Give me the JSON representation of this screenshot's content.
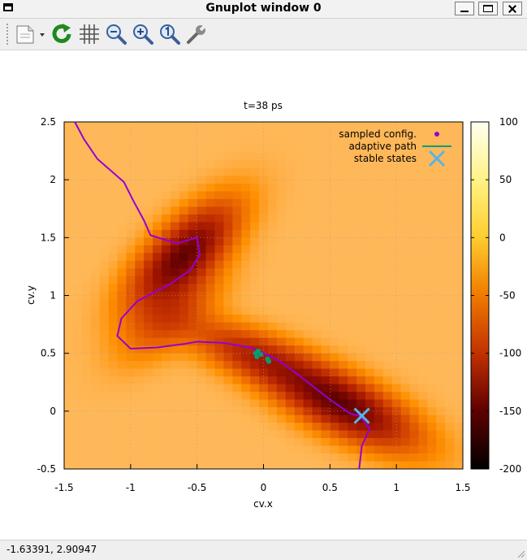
{
  "window": {
    "title": "Gnuplot window 0"
  },
  "toolbar": {
    "buttons": [
      {
        "name": "export-icon",
        "label": "Export"
      },
      {
        "name": "replot-icon",
        "label": "Replot"
      },
      {
        "name": "grid-icon",
        "label": "Grid"
      },
      {
        "name": "zoom-prev-icon",
        "label": "Previous zoom"
      },
      {
        "name": "zoom-next-icon",
        "label": "Next zoom"
      },
      {
        "name": "zoom-reset-icon",
        "label": "Autoscale"
      },
      {
        "name": "config-icon",
        "label": "Configure"
      }
    ]
  },
  "status": {
    "coords": "-1.63391,  2.90947"
  },
  "chart_data": {
    "type": "heatmap",
    "title": "t=38 ps",
    "xlabel": "cv.x",
    "ylabel": "cv.y",
    "xlim": [
      -1.5,
      1.5
    ],
    "ylim": [
      -0.5,
      2.5
    ],
    "xticks": [
      "-1.5",
      "-1",
      "-0.5",
      "0",
      "0.5",
      "1",
      "1.5"
    ],
    "yticks": [
      "-0.5",
      "0",
      "0.5",
      "1",
      "1.5",
      "2",
      "2.5"
    ],
    "grid": true,
    "colorbar": {
      "min": -200,
      "max": 100,
      "ticks": [
        "100",
        "50",
        "0",
        "-50",
        "-100",
        "-150",
        "-200"
      ]
    },
    "legend": {
      "position": "top-right",
      "entries": [
        "sampled config.",
        "adaptive path",
        "stable states"
      ]
    },
    "series": [
      {
        "name": "adaptive path",
        "color": "#9400d3",
        "points": [
          [
            -1.42,
            2.5
          ],
          [
            -1.35,
            2.35
          ],
          [
            -1.25,
            2.18
          ],
          [
            -1.15,
            2.08
          ],
          [
            -1.05,
            1.98
          ],
          [
            -0.98,
            1.82
          ],
          [
            -0.9,
            1.65
          ],
          [
            -0.85,
            1.52
          ],
          [
            -0.65,
            1.45
          ],
          [
            -0.5,
            1.5
          ],
          [
            -0.48,
            1.35
          ],
          [
            -0.55,
            1.22
          ],
          [
            -0.7,
            1.1
          ],
          [
            -0.95,
            0.95
          ],
          [
            -1.07,
            0.8
          ],
          [
            -1.1,
            0.65
          ],
          [
            -1.0,
            0.54
          ],
          [
            -0.8,
            0.55
          ],
          [
            -0.6,
            0.58
          ],
          [
            -0.5,
            0.6
          ],
          [
            -0.3,
            0.59
          ],
          [
            -0.1,
            0.55
          ],
          [
            0.1,
            0.45
          ],
          [
            0.3,
            0.28
          ],
          [
            0.5,
            0.1
          ],
          [
            0.65,
            -0.02
          ],
          [
            0.72,
            -0.04
          ],
          [
            0.8,
            -0.15
          ],
          [
            0.74,
            -0.3
          ],
          [
            0.72,
            -0.5
          ]
        ]
      },
      {
        "name": "sampled config.",
        "color": "#009e73",
        "points": [
          [
            -0.04,
            0.52
          ],
          [
            -0.05,
            0.47
          ],
          [
            -0.02,
            0.49
          ],
          [
            0.03,
            0.45
          ],
          [
            0.04,
            0.43
          ],
          [
            -0.06,
            0.5
          ]
        ]
      },
      {
        "name": "stable states",
        "color": "#56b4e9",
        "points": [
          [
            0.74,
            -0.04
          ]
        ]
      }
    ],
    "surface": {
      "base": 55,
      "basins": [
        {
          "x": -0.6,
          "y": 1.35,
          "depth": -220,
          "width": 0.28,
          "stretch": 0.55,
          "angle": 50
        },
        {
          "x": 0.6,
          "y": 0.05,
          "depth": -220,
          "width": 0.3,
          "stretch": 0.5,
          "angle": -30
        },
        {
          "x": -0.7,
          "y": 0.8,
          "depth": -80,
          "width": 0.25,
          "stretch": 0.6,
          "angle": 45
        },
        {
          "x": -0.1,
          "y": 0.5,
          "depth": -120,
          "width": 0.25,
          "stretch": 0.5,
          "angle": -25
        }
      ]
    }
  }
}
